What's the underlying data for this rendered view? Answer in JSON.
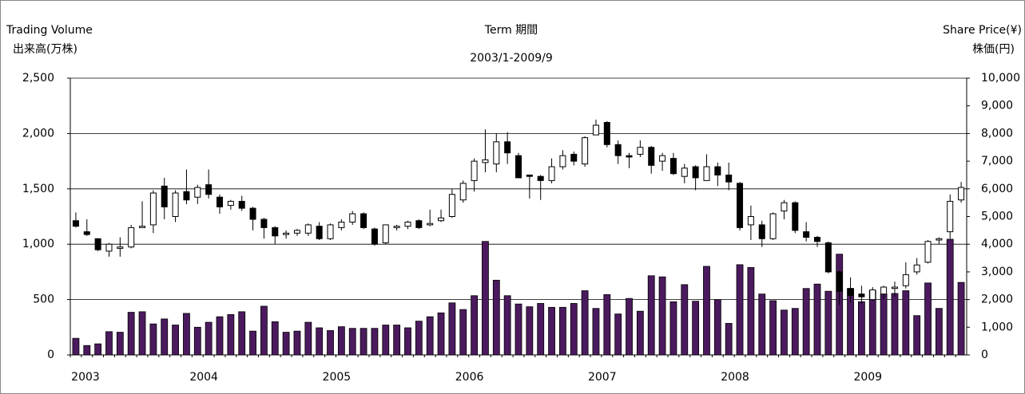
{
  "chart_data": {
    "type": "candlestick",
    "title": "Term 期間",
    "subtitle": "2003/1-2009/9",
    "y_label": "Trading Volume",
    "y_label_2": "出来高(万株)",
    "y2_label": "Share Price(¥)",
    "y2_label_2": "株価(円)",
    "categories": [
      "2003",
      null,
      null,
      null,
      null,
      null,
      null,
      null,
      null,
      null,
      null,
      null,
      "2004",
      null,
      null,
      null,
      null,
      null,
      null,
      null,
      null,
      null,
      null,
      null,
      "2005",
      null,
      null,
      null,
      null,
      null,
      null,
      null,
      null,
      null,
      null,
      null,
      "2006",
      null,
      null,
      null,
      null,
      null,
      null,
      null,
      null,
      null,
      null,
      null,
      "2007",
      null,
      null,
      null,
      null,
      null,
      null,
      null,
      null,
      null,
      null,
      null,
      "2008",
      null,
      null,
      null,
      null,
      null,
      null,
      null,
      null,
      null,
      null,
      null,
      "2009",
      null,
      null,
      null,
      null,
      null,
      null,
      null,
      null
    ],
    "volume": {
      "color": "#4b1a5e",
      "values": [
        150,
        85,
        100,
        210,
        205,
        385,
        390,
        280,
        325,
        270,
        375,
        250,
        295,
        345,
        365,
        390,
        215,
        440,
        300,
        205,
        215,
        295,
        245,
        220,
        255,
        240,
        240,
        240,
        270,
        270,
        245,
        305,
        345,
        380,
        470,
        410,
        535,
        1025,
        675,
        535,
        460,
        435,
        465,
        430,
        430,
        465,
        580,
        420,
        545,
        370,
        510,
        395,
        715,
        705,
        480,
        635,
        485,
        800,
        500,
        285,
        815,
        790,
        550,
        490,
        405,
        420,
        600,
        640,
        575,
        910,
        600,
        480,
        580,
        550,
        555,
        580,
        355,
        650,
        420,
        1045,
        655
      ]
    },
    "ohlc": {
      "axis": "y2",
      "up_color": "#ffffff",
      "down_color": "#000000",
      "open": [
        4850,
        4450,
        4200,
        3750,
        3850,
        3900,
        4600,
        4700,
        6100,
        5000,
        5900,
        5700,
        6150,
        5700,
        5400,
        5550,
        5300,
        4900,
        4600,
        4350,
        4400,
        4400,
        4650,
        4200,
        4600,
        4800,
        5100,
        4550,
        4050,
        4600,
        4650,
        4850,
        4700,
        4850,
        5000,
        5600,
        6300,
        6950,
        6900,
        7700,
        7200,
        6500,
        6450,
        6300,
        6800,
        7250,
        6900,
        7950,
        8400,
        7600,
        7200,
        7250,
        7500,
        7000,
        7100,
        6450,
        6800,
        6300,
        6800,
        6500,
        6200,
        4700,
        4700,
        4200,
        5200,
        5500,
        4450,
        4250,
        4050,
        3000,
        2400,
        2200,
        2000,
        2200,
        2400,
        2500,
        3000,
        3350,
        4150,
        4450,
        5600
      ],
      "high": [
        5150,
        4900,
        4200,
        4050,
        4250,
        4700,
        5550,
        5950,
        6400,
        5950,
        6700,
        6150,
        6700,
        5800,
        5600,
        5750,
        5350,
        4950,
        4650,
        4500,
        4550,
        4750,
        4800,
        4750,
        4900,
        5200,
        5150,
        4600,
        4700,
        4700,
        4850,
        4900,
        5250,
        5250,
        6000,
        6300,
        7100,
        8150,
        8000,
        8050,
        7300,
        6500,
        6500,
        7100,
        7400,
        7350,
        7900,
        8500,
        8450,
        7750,
        7300,
        7750,
        7550,
        7300,
        7300,
        6900,
        6850,
        7250,
        6950,
        6950,
        6250,
        5400,
        4850,
        5150,
        5600,
        5550,
        4800,
        4300,
        4100,
        3050,
        2800,
        2500,
        2450,
        2500,
        2650,
        3350,
        3500,
        4150,
        4250,
        5800,
        6250
      ],
      "low": [
        4600,
        4300,
        3750,
        3550,
        3550,
        3850,
        4600,
        4400,
        4900,
        4800,
        5450,
        5450,
        5650,
        5100,
        5250,
        5200,
        4500,
        4200,
        4000,
        4200,
        4300,
        4300,
        4150,
        4150,
        4500,
        4700,
        4550,
        3950,
        4000,
        4500,
        4550,
        4550,
        4650,
        4800,
        4950,
        5500,
        5900,
        6600,
        6600,
        6900,
        6400,
        5650,
        5600,
        6200,
        6700,
        6850,
        6800,
        7950,
        7500,
        6900,
        6750,
        7150,
        6550,
        6650,
        6500,
        6200,
        5950,
        6300,
        6100,
        5950,
        4500,
        4150,
        3900,
        4150,
        4900,
        4400,
        4100,
        3900,
        2950,
        1800,
        1900,
        1850,
        1950,
        2000,
        2100,
        2400,
        2900,
        3300,
        4000,
        4200,
        5500
      ],
      "close": [
        4650,
        4350,
        3800,
        4000,
        3900,
        4600,
        4650,
        5850,
        5350,
        5850,
        5600,
        6050,
        5800,
        5350,
        5550,
        5300,
        4900,
        4600,
        4300,
        4400,
        4500,
        4700,
        4200,
        4700,
        4800,
        5100,
        4600,
        4000,
        4700,
        4650,
        4800,
        4600,
        4750,
        4950,
        5800,
        6200,
        7000,
        7050,
        7700,
        7300,
        6400,
        6450,
        6300,
        6800,
        7200,
        7000,
        7850,
        8300,
        7600,
        7200,
        7150,
        7500,
        6850,
        7200,
        6550,
        6750,
        6400,
        6800,
        6500,
        6250,
        4600,
        5000,
        4200,
        5100,
        5500,
        4500,
        4250,
        4100,
        3000,
        2300,
        2150,
        2100,
        2350,
        2450,
        2450,
        2900,
        3250,
        4100,
        4200,
        5550,
        6050
      ]
    },
    "ylim": [
      0,
      2500
    ],
    "yticks": [
      0,
      500,
      {
        "value": 1000,
        "label": "1,000"
      },
      {
        "value": 1500,
        "label": "1,500"
      },
      {
        "value": 2000,
        "label": "2,000"
      },
      {
        "value": 2500,
        "label": "2,500"
      }
    ],
    "y2lim": [
      0,
      10000
    ],
    "y2ticks": [
      0,
      {
        "value": 1000,
        "label": "1,000"
      },
      {
        "value": 2000,
        "label": "2,000"
      },
      {
        "value": 3000,
        "label": "3,000"
      },
      {
        "value": 4000,
        "label": "4,000"
      },
      {
        "value": 5000,
        "label": "5,000"
      },
      {
        "value": 6000,
        "label": "6,000"
      },
      {
        "value": 7000,
        "label": "7,000"
      },
      {
        "value": 8000,
        "label": "8,000"
      },
      {
        "value": 9000,
        "label": "9,000"
      },
      {
        "value": 10000,
        "label": "10,000"
      }
    ],
    "grid": true
  }
}
